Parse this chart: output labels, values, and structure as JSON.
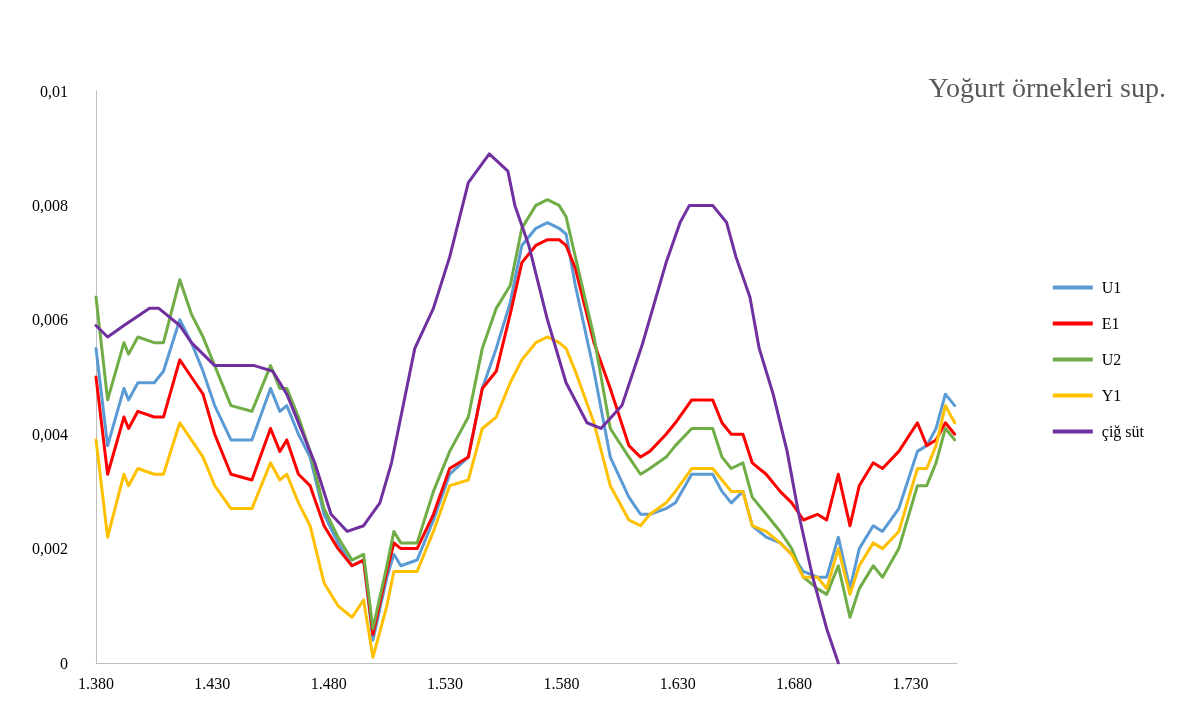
{
  "chart_data": {
    "type": "line",
    "title": "Yoğurt örnekleri sup.",
    "legend": "right",
    "marker": "none",
    "line_style": "solid",
    "grid": false,
    "x": [
      1380,
      1385,
      1392,
      1394,
      1398,
      1405,
      1409,
      1416,
      1421,
      1426,
      1431,
      1438,
      1447,
      1455,
      1459,
      1462,
      1467,
      1472,
      1478,
      1484,
      1490,
      1495,
      1499,
      1505,
      1508,
      1511,
      1518,
      1525,
      1532,
      1540,
      1546,
      1552,
      1558,
      1563,
      1569,
      1574,
      1579,
      1582,
      1586,
      1594,
      1601,
      1609,
      1614,
      1618,
      1625,
      1629,
      1636,
      1645,
      1649,
      1653,
      1658,
      1662,
      1668,
      1674,
      1679,
      1684,
      1690,
      1694,
      1699,
      1704,
      1708,
      1714,
      1718,
      1725,
      1733,
      1737,
      1741,
      1745,
      1749
    ],
    "xlim": [
      1380,
      1750
    ],
    "xticks": [
      {
        "value": 1380,
        "label": "1.380"
      },
      {
        "value": 1430,
        "label": "1.430"
      },
      {
        "value": 1480,
        "label": "1.480"
      },
      {
        "value": 1530,
        "label": "1.530"
      },
      {
        "value": 1580,
        "label": "1.580"
      },
      {
        "value": 1630,
        "label": "1.630"
      },
      {
        "value": 1680,
        "label": "1.680"
      },
      {
        "value": 1730,
        "label": "1.730"
      }
    ],
    "ylim": [
      0,
      0.01
    ],
    "yticks": [
      0,
      {
        "value": 0.002,
        "label": "0,002"
      },
      {
        "value": 0.004,
        "label": "0,004"
      },
      {
        "value": 0.006,
        "label": "0,006"
      },
      {
        "value": 0.008,
        "label": "0,008"
      },
      {
        "value": 0.01,
        "label": "0,01"
      }
    ],
    "series": [
      {
        "name": "U1",
        "color": "#5b9bd5",
        "values": [
          0.0055,
          0.0038,
          0.0048,
          0.0046,
          0.0049,
          0.0049,
          0.0051,
          0.006,
          0.0056,
          0.0051,
          0.0045,
          0.0039,
          0.0039,
          0.0048,
          0.0044,
          0.0045,
          0.004,
          0.0036,
          0.0026,
          0.0021,
          0.0017,
          0.0018,
          0.0004,
          0.0015,
          0.0019,
          0.0017,
          0.0018,
          0.0025,
          0.0033,
          0.0036,
          0.0048,
          0.0055,
          0.0063,
          0.0073,
          0.0076,
          0.0077,
          0.0076,
          0.0075,
          0.0066,
          0.0051,
          0.0036,
          0.0029,
          0.0026,
          0.0026,
          0.0027,
          0.0028,
          0.0033,
          0.0033,
          0.003,
          0.0028,
          0.003,
          0.0024,
          0.0022,
          0.0021,
          0.0019,
          0.0016,
          0.0015,
          0.0015,
          0.0022,
          0.0013,
          0.002,
          0.0024,
          0.0023,
          0.0027,
          0.0037,
          0.0038,
          0.0041,
          0.0047,
          0.0045
        ]
      },
      {
        "name": "E1",
        "color": "#ff0000",
        "values": [
          0.005,
          0.0033,
          0.0043,
          0.0041,
          0.0044,
          0.0043,
          0.0043,
          0.0053,
          0.005,
          0.0047,
          0.004,
          0.0033,
          0.0032,
          0.0041,
          0.0037,
          0.0039,
          0.0033,
          0.0031,
          0.0024,
          0.002,
          0.0017,
          0.0018,
          0.0005,
          0.0016,
          0.0021,
          0.002,
          0.002,
          0.0026,
          0.0034,
          0.0036,
          0.0048,
          0.0051,
          0.0061,
          0.007,
          0.0073,
          0.0074,
          0.0074,
          0.0073,
          0.0069,
          0.0056,
          0.0048,
          0.0038,
          0.0036,
          0.0037,
          0.004,
          0.0042,
          0.0046,
          0.0046,
          0.0042,
          0.004,
          0.004,
          0.0035,
          0.0033,
          0.003,
          0.0028,
          0.0025,
          0.0026,
          0.0025,
          0.0033,
          0.0024,
          0.0031,
          0.0035,
          0.0034,
          0.0037,
          0.0042,
          0.0038,
          0.0039,
          0.0042,
          0.004
        ]
      },
      {
        "name": "U2",
        "color": "#70ad47",
        "values": [
          0.0064,
          0.0046,
          0.0056,
          0.0054,
          0.0057,
          0.0056,
          0.0056,
          0.0067,
          0.0061,
          0.0057,
          0.0052,
          0.0045,
          0.0044,
          0.0052,
          0.0048,
          0.0048,
          0.0043,
          0.0037,
          0.0027,
          0.0022,
          0.0018,
          0.0019,
          0.0006,
          0.0017,
          0.0023,
          0.0021,
          0.0021,
          0.003,
          0.0037,
          0.0043,
          0.0055,
          0.0062,
          0.0066,
          0.0076,
          0.008,
          0.0081,
          0.008,
          0.0078,
          0.0071,
          0.0057,
          0.0041,
          0.0036,
          0.0033,
          0.0034,
          0.0036,
          0.0038,
          0.0041,
          0.0041,
          0.0036,
          0.0034,
          0.0035,
          0.0029,
          0.0026,
          0.0023,
          0.002,
          0.0015,
          0.0013,
          0.0012,
          0.0017,
          0.0008,
          0.0013,
          0.0017,
          0.0015,
          0.002,
          0.0031,
          0.0031,
          0.0035,
          0.0041,
          0.0039
        ]
      },
      {
        "name": "Y1",
        "color": "#ffc000",
        "values": [
          0.0039,
          0.0022,
          0.0033,
          0.0031,
          0.0034,
          0.0033,
          0.0033,
          0.0042,
          0.0039,
          0.0036,
          0.0031,
          0.0027,
          0.0027,
          0.0035,
          0.0032,
          0.0033,
          0.0028,
          0.0024,
          0.0014,
          0.001,
          0.0008,
          0.0011,
          0.0001,
          0.001,
          0.0016,
          0.0016,
          0.0016,
          0.0023,
          0.0031,
          0.0032,
          0.0041,
          0.0043,
          0.0049,
          0.0053,
          0.0056,
          0.0057,
          0.0056,
          0.0055,
          0.0051,
          0.0042,
          0.0031,
          0.0025,
          0.0024,
          0.0026,
          0.0028,
          0.003,
          0.0034,
          0.0034,
          0.0032,
          0.003,
          0.003,
          0.0024,
          0.0023,
          0.0021,
          0.0019,
          0.0015,
          0.0015,
          0.0013,
          0.002,
          0.0012,
          0.0017,
          0.0021,
          0.002,
          0.0023,
          0.0034,
          0.0034,
          0.0038,
          0.0045,
          0.0042
        ]
      },
      {
        "name": "çiğ süt",
        "color": "#7030a0",
        "x": [
          1380,
          1385,
          1392,
          1403,
          1407,
          1416,
          1421,
          1431,
          1440,
          1448,
          1456,
          1462,
          1469,
          1474,
          1481,
          1488,
          1495,
          1502,
          1507,
          1511,
          1517,
          1525,
          1532,
          1540,
          1549,
          1557,
          1560,
          1566,
          1574,
          1582,
          1591,
          1597,
          1606,
          1615,
          1625,
          1631,
          1635,
          1645,
          1651,
          1655,
          1661,
          1665,
          1671,
          1677,
          1682,
          1688,
          1694,
          1699
        ],
        "values": [
          0.0059,
          0.0057,
          0.0059,
          0.0062,
          0.0062,
          0.0059,
          0.0056,
          0.0052,
          0.0052,
          0.0052,
          0.0051,
          0.0047,
          0.004,
          0.0035,
          0.0026,
          0.0023,
          0.0024,
          0.0028,
          0.0035,
          0.0043,
          0.0055,
          0.0062,
          0.0071,
          0.0084,
          0.0089,
          0.0086,
          0.008,
          0.0073,
          0.006,
          0.0049,
          0.0042,
          0.0041,
          0.0045,
          0.0056,
          0.007,
          0.0077,
          0.008,
          0.008,
          0.0077,
          0.0071,
          0.0064,
          0.0055,
          0.0047,
          0.0037,
          0.0026,
          0.0015,
          0.0006,
          0
        ]
      }
    ]
  }
}
